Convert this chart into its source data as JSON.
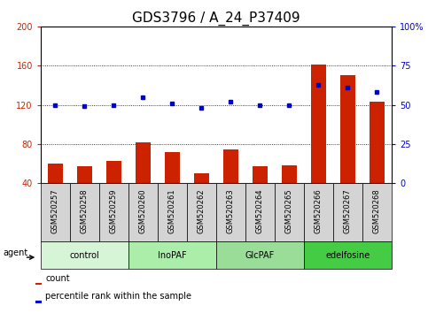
{
  "title": "GDS3796 / A_24_P37409",
  "categories": [
    "GSM520257",
    "GSM520258",
    "GSM520259",
    "GSM520260",
    "GSM520261",
    "GSM520262",
    "GSM520263",
    "GSM520264",
    "GSM520265",
    "GSM520266",
    "GSM520267",
    "GSM520268"
  ],
  "bar_values": [
    60,
    57,
    63,
    82,
    72,
    50,
    74,
    57,
    58,
    161,
    150,
    123
  ],
  "dot_values": [
    50,
    49,
    50,
    55,
    51,
    48,
    52,
    50,
    50,
    63,
    61,
    58
  ],
  "groups": [
    {
      "label": "control",
      "start": 0,
      "end": 3,
      "color": "#d6f5d6"
    },
    {
      "label": "InoPAF",
      "start": 3,
      "end": 6,
      "color": "#aaeeaa"
    },
    {
      "label": "GlcPAF",
      "start": 6,
      "end": 9,
      "color": "#99dd99"
    },
    {
      "label": "edelfosine",
      "start": 9,
      "end": 12,
      "color": "#44cc44"
    }
  ],
  "ylim_left": [
    40,
    200
  ],
  "ylim_right": [
    0,
    100
  ],
  "yticks_left": [
    40,
    80,
    120,
    160,
    200
  ],
  "yticks_right": [
    0,
    25,
    50,
    75,
    100
  ],
  "ytick_labels_right": [
    "0",
    "25",
    "50",
    "75",
    "100%"
  ],
  "bar_color": "#cc2200",
  "dot_color": "#0000cc",
  "agent_label": "agent",
  "legend_count": "count",
  "legend_pct": "percentile rank within the sample",
  "title_fontsize": 11,
  "tick_fontsize": 7,
  "bar_width": 0.5
}
